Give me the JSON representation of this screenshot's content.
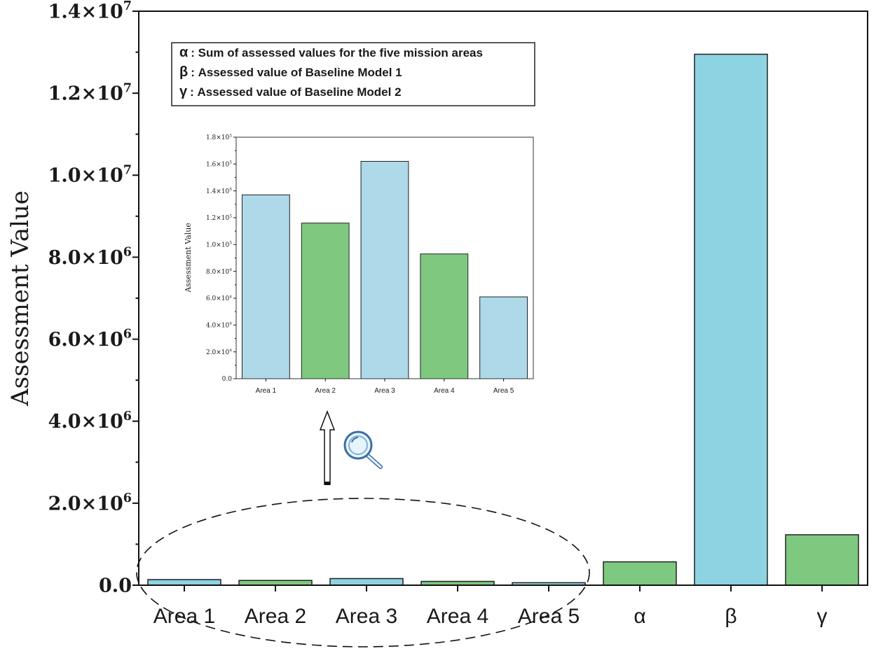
{
  "chart_data": [
    {
      "type": "bar",
      "ylabel": "Assessment Value",
      "ylim": [
        0,
        14000000
      ],
      "y_ticks": [
        {
          "value": 0,
          "mant": "0.0",
          "exp": ""
        },
        {
          "value": 2000000,
          "mant": "2.0×10",
          "exp": "6"
        },
        {
          "value": 4000000,
          "mant": "4.0×10",
          "exp": "6"
        },
        {
          "value": 6000000,
          "mant": "6.0×10",
          "exp": "6"
        },
        {
          "value": 8000000,
          "mant": "8.0×10",
          "exp": "6"
        },
        {
          "value": 10000000,
          "mant": "1.0×10",
          "exp": "7"
        },
        {
          "value": 12000000,
          "mant": "1.2×10",
          "exp": "7"
        },
        {
          "value": 14000000,
          "mant": "1.4×10",
          "exp": "7"
        }
      ],
      "categories": [
        "Area 1",
        "Area 2",
        "Area 3",
        "Area 4",
        "Area 5",
        "α",
        "β",
        "γ"
      ],
      "values": [
        137000,
        116000,
        162000,
        93000,
        61000,
        570000,
        12950000,
        1230000
      ],
      "colors": [
        "#8dd3e2",
        "#7fc87f",
        "#8dd3e2",
        "#7fc87f",
        "#8dd3e2",
        "#7fc87f",
        "#8dd3e2",
        "#7fc87f"
      ],
      "legend_lines": [
        {
          "sym": "α",
          "text": "Sum of assessed values for the five mission areas"
        },
        {
          "sym": "β",
          "text": "Assessed value of Baseline Model 1"
        },
        {
          "sym": "γ",
          "text": "Assessed value of Baseline Model 2"
        }
      ],
      "legend_separator": ":",
      "legend_placement": "top-left",
      "grid": false
    },
    {
      "type": "bar",
      "role": "inset",
      "ylabel": "Assessment Value",
      "ylim": [
        0,
        180000
      ],
      "y_ticks": [
        {
          "value": 0,
          "mant": "0.0",
          "exp": ""
        },
        {
          "value": 20000,
          "mant": "2.0×10",
          "exp": "4"
        },
        {
          "value": 40000,
          "mant": "4.0×10",
          "exp": "4"
        },
        {
          "value": 60000,
          "mant": "6.0×10",
          "exp": "4"
        },
        {
          "value": 80000,
          "mant": "8.0×10",
          "exp": "4"
        },
        {
          "value": 100000,
          "mant": "1.0×10",
          "exp": "5"
        },
        {
          "value": 120000,
          "mant": "1.2×10",
          "exp": "5"
        },
        {
          "value": 140000,
          "mant": "1.4×10",
          "exp": "5"
        },
        {
          "value": 160000,
          "mant": "1.6×10",
          "exp": "5"
        },
        {
          "value": 180000,
          "mant": "1.8×10",
          "exp": "5"
        }
      ],
      "categories": [
        "Area 1",
        "Area 2",
        "Area 3",
        "Area 4",
        "Area 5"
      ],
      "values": [
        137000,
        116000,
        162000,
        93000,
        61000
      ],
      "colors": [
        "#add9e8",
        "#7fc87f",
        "#add9e8",
        "#7fc87f",
        "#add9e8"
      ],
      "grid": false
    }
  ],
  "icons": {
    "magnifier": "magnifier-icon",
    "arrow": "up-arrow-icon"
  }
}
